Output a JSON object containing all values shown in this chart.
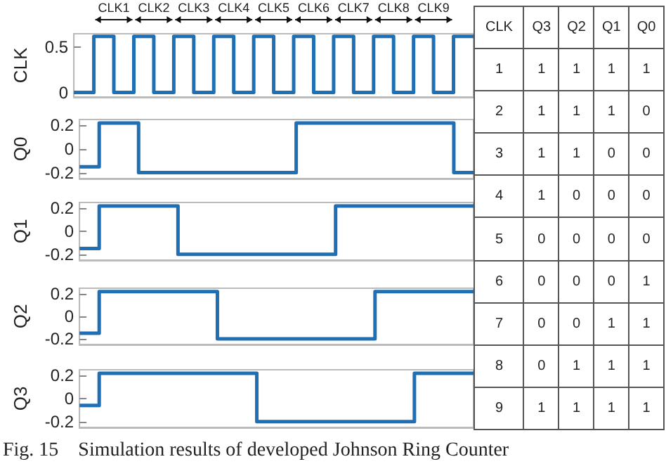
{
  "chart_data": [
    {
      "type": "step",
      "ylabel": "CLK",
      "categories": [
        null,
        null,
        null,
        null,
        null,
        null,
        null,
        null,
        null,
        null,
        null,
        null,
        null,
        null,
        null,
        null,
        null,
        null,
        null,
        null,
        null
      ],
      "ylim": [
        -0.05,
        0.65
      ],
      "yticks": [
        0,
        0.5
      ],
      "tick_labels": "y",
      "annotations": [
        "CLK1",
        "CLK2",
        "CLK3",
        "CLK4",
        "CLK5",
        "CLK6",
        "CLK7",
        "CLK8",
        "CLK9"
      ],
      "series": [
        {
          "color": "#1f6fb4",
          "values": [
            0,
            0.62,
            0,
            0.62,
            0,
            0.62,
            0,
            0.62,
            0,
            0.62,
            0,
            0.62,
            0,
            0.62,
            0,
            0.62,
            0,
            0.62,
            0,
            0.62,
            0.62
          ]
        }
      ]
    },
    {
      "type": "step",
      "ylabel": "Q0",
      "categories": [
        null,
        null,
        null,
        null,
        null,
        null,
        null,
        null,
        null,
        null,
        null,
        null,
        null,
        null,
        null,
        null,
        null,
        null,
        null,
        null,
        null
      ],
      "ylim": [
        -0.25,
        0.25
      ],
      "yticks": [
        -0.2,
        0,
        0.2
      ],
      "tick_labels": "y",
      "series": [
        {
          "color": "#1f6fb4",
          "values": [
            -0.15,
            0.22,
            0.22,
            -0.2,
            -0.2,
            -0.2,
            -0.2,
            -0.2,
            -0.2,
            -0.2,
            -0.2,
            0.22,
            0.22,
            0.22,
            0.22,
            0.22,
            0.22,
            0.22,
            0.22,
            -0.2,
            -0.2
          ]
        }
      ]
    },
    {
      "type": "step",
      "ylabel": "Q1",
      "categories": [
        null,
        null,
        null,
        null,
        null,
        null,
        null,
        null,
        null,
        null,
        null,
        null,
        null,
        null,
        null,
        null,
        null,
        null,
        null,
        null,
        null
      ],
      "ylim": [
        -0.25,
        0.25
      ],
      "yticks": [
        -0.2,
        0,
        0.2
      ],
      "tick_labels": "y",
      "series": [
        {
          "color": "#1f6fb4",
          "values": [
            -0.15,
            0.22,
            0.22,
            0.22,
            0.22,
            -0.2,
            -0.2,
            -0.2,
            -0.2,
            -0.2,
            -0.2,
            -0.2,
            -0.2,
            0.22,
            0.22,
            0.22,
            0.22,
            0.22,
            0.22,
            0.22,
            0.22
          ]
        }
      ]
    },
    {
      "type": "step",
      "ylabel": "Q2",
      "categories": [
        null,
        null,
        null,
        null,
        null,
        null,
        null,
        null,
        null,
        null,
        null,
        null,
        null,
        null,
        null,
        null,
        null,
        null,
        null,
        null,
        null
      ],
      "ylim": [
        -0.25,
        0.25
      ],
      "yticks": [
        -0.2,
        0,
        0.2
      ],
      "tick_labels": "y",
      "series": [
        {
          "color": "#1f6fb4",
          "values": [
            -0.15,
            0.22,
            0.22,
            0.22,
            0.22,
            0.22,
            0.22,
            -0.2,
            -0.2,
            -0.2,
            -0.2,
            -0.2,
            -0.2,
            -0.2,
            -0.2,
            0.22,
            0.22,
            0.22,
            0.22,
            0.22,
            0.22
          ]
        }
      ]
    },
    {
      "type": "step",
      "ylabel": "Q3",
      "categories": [
        null,
        null,
        null,
        null,
        null,
        null,
        null,
        null,
        null,
        null,
        null,
        null,
        null,
        null,
        null,
        null,
        null,
        null,
        null,
        null,
        null
      ],
      "ylim": [
        -0.25,
        0.25
      ],
      "yticks": [
        -0.2,
        0,
        0.2
      ],
      "tick_labels": "y",
      "series": [
        {
          "color": "#1f6fb4",
          "values": [
            -0.06,
            0.22,
            0.22,
            0.22,
            0.22,
            0.22,
            0.22,
            0.22,
            0.22,
            -0.2,
            -0.2,
            -0.2,
            -0.2,
            -0.2,
            -0.2,
            -0.2,
            -0.2,
            0.22,
            0.22,
            0.22,
            0.22
          ]
        }
      ]
    },
    {
      "type": "heatmap",
      "ylabel": "CLK",
      "categories": [
        "Q3",
        "Q2",
        "Q1",
        "Q0"
      ],
      "y_categories": [
        "1",
        "2",
        "3",
        "4",
        "5",
        "6",
        "7",
        "8",
        "9"
      ],
      "data_labels": true,
      "cells": [
        [
          1,
          1,
          1,
          1
        ],
        [
          1,
          1,
          1,
          0
        ],
        [
          1,
          1,
          0,
          0
        ],
        [
          1,
          0,
          0,
          0
        ],
        [
          0,
          0,
          0,
          0
        ],
        [
          0,
          0,
          0,
          1
        ],
        [
          0,
          0,
          1,
          1
        ],
        [
          0,
          1,
          1,
          1
        ],
        [
          1,
          1,
          1,
          1
        ]
      ],
      "annotations": [
        "Fig. 15    Simulation results of developed Johnson Ring Counter"
      ]
    }
  ]
}
